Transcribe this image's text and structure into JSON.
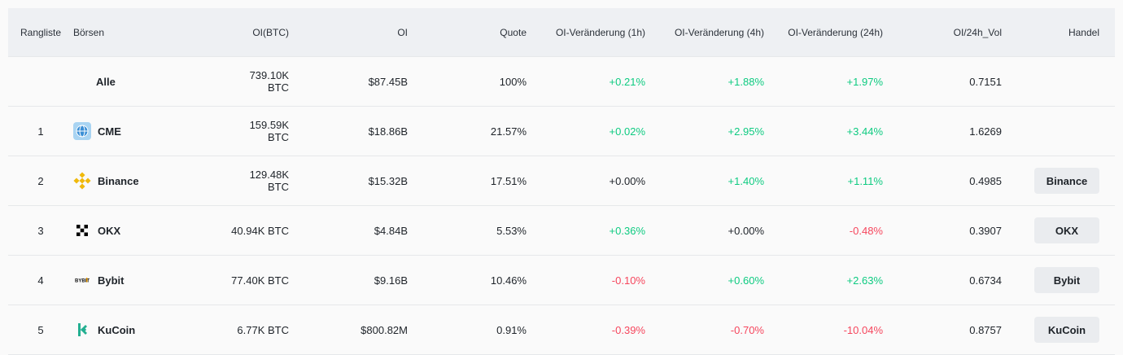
{
  "headers": {
    "rank": "Rangliste",
    "exchange": "Börsen",
    "oi_btc": "OI(BTC)",
    "oi": "OI",
    "quote": "Quote",
    "change_1h": "OI-Veränderung (1h)",
    "change_4h": "OI-Veränderung (4h)",
    "change_24h": "OI-Veränderung (24h)",
    "oi_vol": "OI/24h_Vol",
    "trade": "Handel"
  },
  "rows": [
    {
      "rank": "",
      "exchange": "Alle",
      "icon": "",
      "oi_btc": "739.10K BTC",
      "oi": "$87.45B",
      "quote": "100%",
      "change_1h": "+0.21%",
      "change_4h": "+1.88%",
      "change_24h": "+1.97%",
      "oi_vol": "0.7151",
      "trade": ""
    },
    {
      "rank": "1",
      "exchange": "CME",
      "icon": "cme-icon",
      "oi_btc": "159.59K BTC",
      "oi": "$18.86B",
      "quote": "21.57%",
      "change_1h": "+0.02%",
      "change_4h": "+2.95%",
      "change_24h": "+3.44%",
      "oi_vol": "1.6269",
      "trade": ""
    },
    {
      "rank": "2",
      "exchange": "Binance",
      "icon": "binance-icon",
      "oi_btc": "129.48K BTC",
      "oi": "$15.32B",
      "quote": "17.51%",
      "change_1h": "+0.00%",
      "change_4h": "+1.40%",
      "change_24h": "+1.11%",
      "oi_vol": "0.4985",
      "trade": "Binance"
    },
    {
      "rank": "3",
      "exchange": "OKX",
      "icon": "okx-icon",
      "oi_btc": "40.94K BTC",
      "oi": "$4.84B",
      "quote": "5.53%",
      "change_1h": "+0.36%",
      "change_4h": "+0.00%",
      "change_24h": "-0.48%",
      "oi_vol": "0.3907",
      "trade": "OKX"
    },
    {
      "rank": "4",
      "exchange": "Bybit",
      "icon": "bybit-icon",
      "oi_btc": "77.40K BTC",
      "oi": "$9.16B",
      "quote": "10.46%",
      "change_1h": "-0.10%",
      "change_4h": "+0.60%",
      "change_24h": "+2.63%",
      "oi_vol": "0.6734",
      "trade": "Bybit"
    },
    {
      "rank": "5",
      "exchange": "KuCoin",
      "icon": "kucoin-icon",
      "oi_btc": "6.77K BTC",
      "oi": "$800.82M",
      "quote": "0.91%",
      "change_1h": "-0.39%",
      "change_4h": "-0.70%",
      "change_24h": "-10.04%",
      "oi_vol": "0.8757",
      "trade": "KuCoin"
    }
  ],
  "icon_labels": {
    "bybit": "BYBIT"
  },
  "colors": {
    "positive": "#0ecb81",
    "negative": "#f6465d",
    "neutral": "#1e2329"
  }
}
